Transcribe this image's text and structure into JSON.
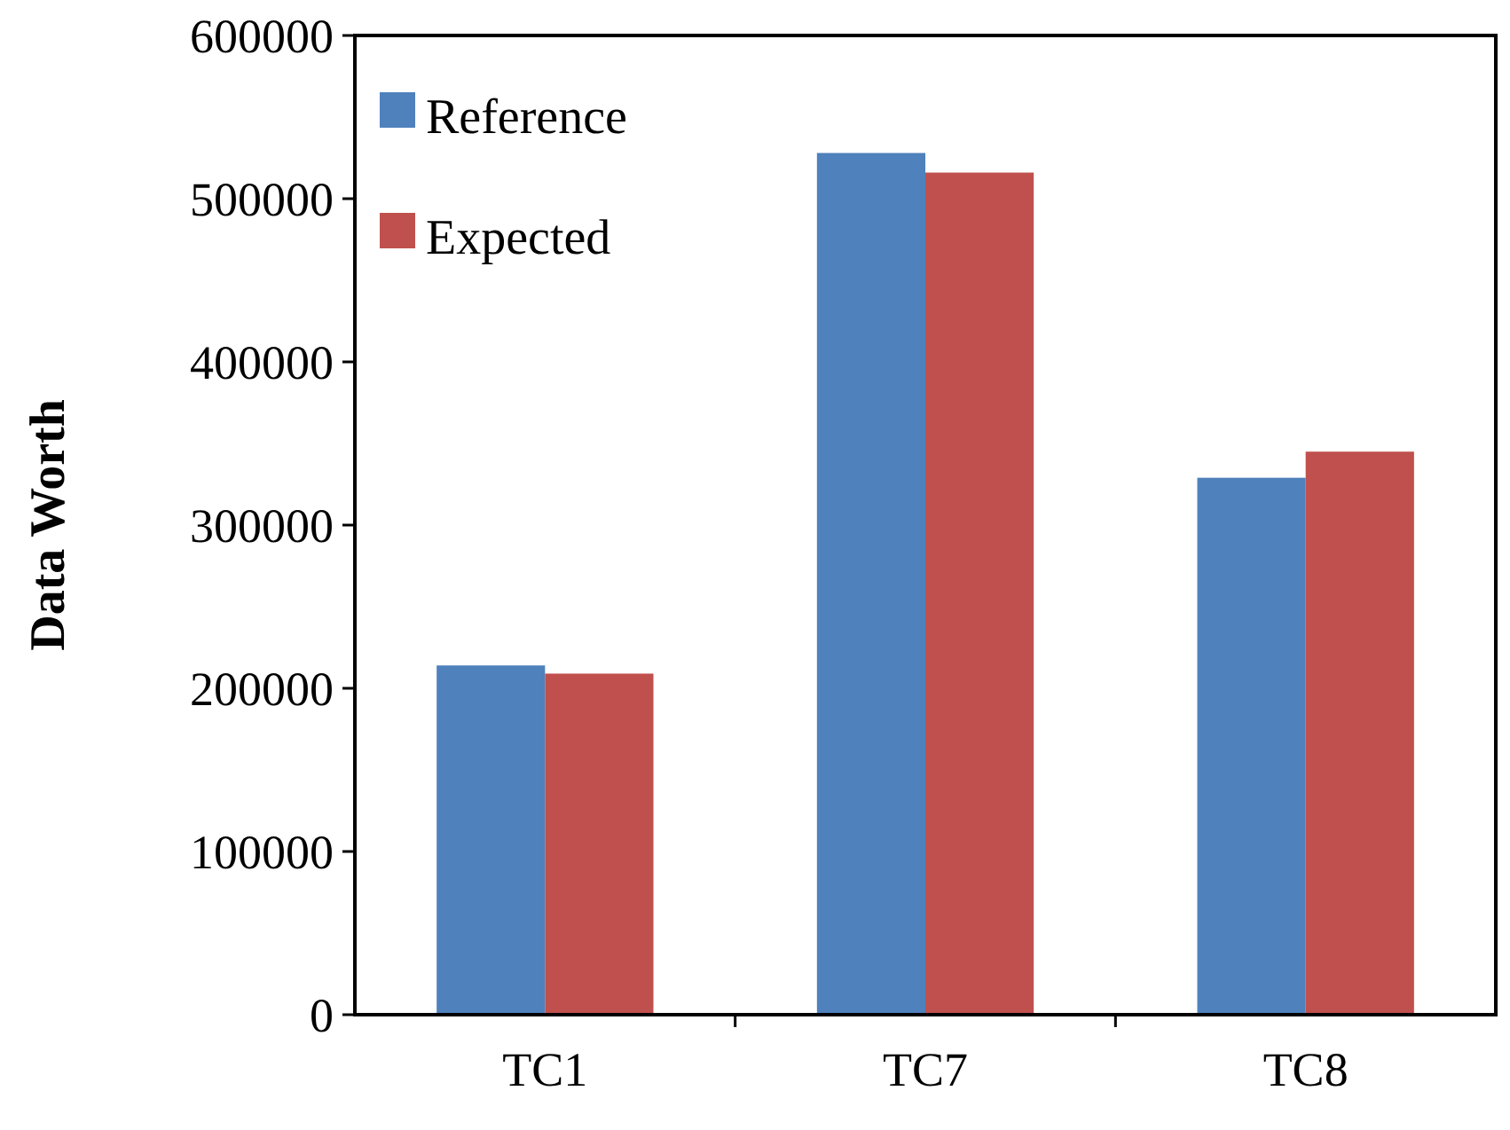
{
  "chart_data": {
    "type": "bar",
    "ylabel": "Data Worth",
    "categories": [
      "TC1",
      "TC7",
      "TC8"
    ],
    "series": [
      {
        "name": "Reference",
        "color": "#4f81bd",
        "values": [
          214000,
          528000,
          329000
        ]
      },
      {
        "name": "Expected",
        "color": "#c0504d",
        "values": [
          209000,
          516000,
          345000
        ]
      }
    ],
    "ylim": [
      0,
      600000
    ],
    "yticks": [
      0,
      100000,
      200000,
      300000,
      400000,
      500000,
      600000
    ],
    "grid": false,
    "legend": "top left"
  }
}
